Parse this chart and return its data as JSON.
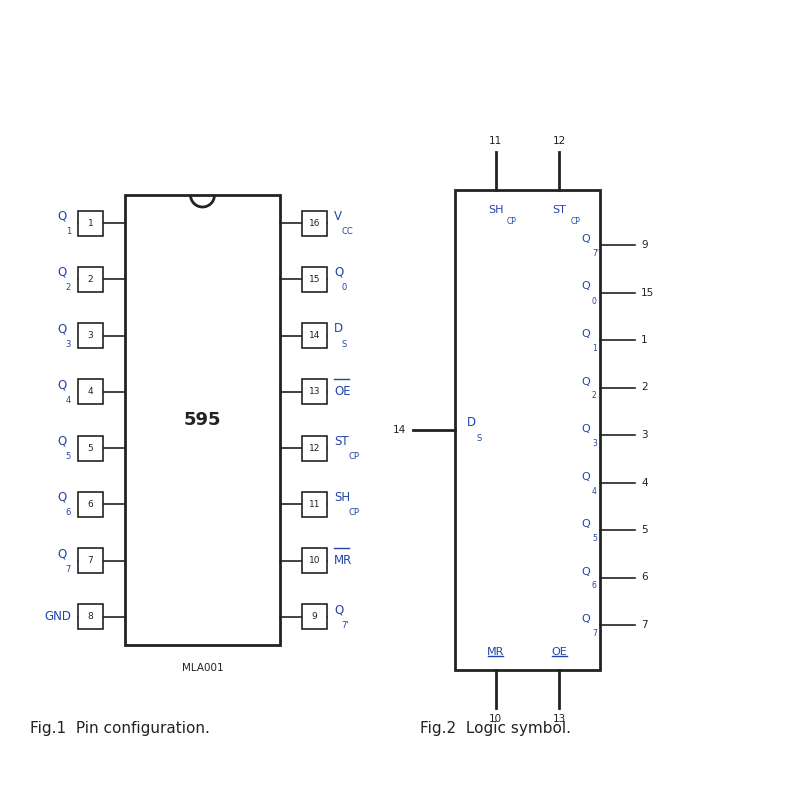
{
  "fig_width": 8.0,
  "fig_height": 8.0,
  "bg_color": "#ffffff",
  "text_color": "#2244aa",
  "black_color": "#222222",
  "fig1_caption": "Fig.1  Pin configuration.",
  "fig2_caption": "Fig.2  Logic symbol.",
  "chip_label": "595",
  "mla_label": "MLA001",
  "left_pins": [
    {
      "num": "1",
      "label": "Q",
      "sub": "1"
    },
    {
      "num": "2",
      "label": "Q",
      "sub": "2"
    },
    {
      "num": "3",
      "label": "Q",
      "sub": "3"
    },
    {
      "num": "4",
      "label": "Q",
      "sub": "4"
    },
    {
      "num": "5",
      "label": "Q",
      "sub": "5"
    },
    {
      "num": "6",
      "label": "Q",
      "sub": "6"
    },
    {
      "num": "7",
      "label": "Q",
      "sub": "7"
    },
    {
      "num": "8",
      "label": "GND",
      "sub": ""
    }
  ],
  "right_pins": [
    {
      "num": "16",
      "label": "V",
      "sub": "CC",
      "overbar": false
    },
    {
      "num": "15",
      "label": "Q",
      "sub": "0",
      "overbar": false
    },
    {
      "num": "14",
      "label": "D",
      "sub": "S",
      "overbar": false
    },
    {
      "num": "13",
      "label": "OE",
      "sub": "",
      "overbar": true
    },
    {
      "num": "12",
      "label": "ST",
      "sub": "CP",
      "overbar": false
    },
    {
      "num": "11",
      "label": "SH",
      "sub": "CP",
      "overbar": false
    },
    {
      "num": "10",
      "label": "MR",
      "sub": "",
      "overbar": true
    },
    {
      "num": "9",
      "label": "Q",
      "sub": "7'",
      "overbar": false
    }
  ],
  "logic_right_pins": [
    {
      "num": "9",
      "label": "Q",
      "sub": "7'"
    },
    {
      "num": "15",
      "label": "Q",
      "sub": "0"
    },
    {
      "num": "1",
      "label": "Q",
      "sub": "1"
    },
    {
      "num": "2",
      "label": "Q",
      "sub": "2"
    },
    {
      "num": "3",
      "label": "Q",
      "sub": "3"
    },
    {
      "num": "4",
      "label": "Q",
      "sub": "4"
    },
    {
      "num": "5",
      "label": "Q",
      "sub": "5"
    },
    {
      "num": "6",
      "label": "Q",
      "sub": "6"
    },
    {
      "num": "7",
      "label": "Q",
      "sub": "7"
    }
  ]
}
